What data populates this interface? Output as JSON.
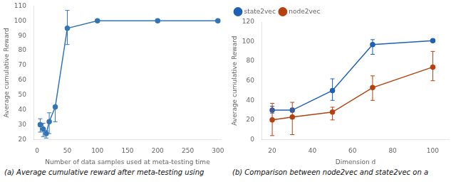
{
  "chart_data": [
    {
      "type": "line",
      "x": [
        5,
        10,
        15,
        20,
        30,
        50,
        100,
        200,
        300
      ],
      "values": [
        30,
        27,
        24,
        32,
        42,
        95,
        100,
        100,
        100
      ],
      "yerr_low": [
        5,
        5,
        3,
        8,
        10,
        11,
        1,
        1,
        1
      ],
      "yerr_high": [
        4,
        4,
        2,
        6,
        0,
        12,
        1,
        1,
        1
      ],
      "color": "#3375b5",
      "marker": "circle",
      "xlabel": "Number of data samples used at meta-testing time",
      "ylabel": "Average cumulative Reward",
      "xlim": [
        -5,
        305
      ],
      "ylim": [
        20,
        110
      ],
      "xticks": [
        0,
        50,
        100,
        150,
        200,
        250,
        300
      ],
      "yticks": [
        20,
        30,
        40,
        50,
        60,
        70,
        80,
        90,
        100,
        110
      ],
      "grid": false,
      "caption": "(a) Average cumulative reward after meta-testing using"
    },
    {
      "type": "line",
      "x": [
        20,
        30,
        50,
        70,
        100
      ],
      "series": [
        {
          "name": "state2vec",
          "color": "#2060b5",
          "values": [
            30,
            30,
            50,
            97,
            101
          ],
          "yerr_low": [
            3,
            2,
            10,
            10,
            1
          ],
          "yerr_high": [
            4,
            2,
            12,
            5,
            1
          ]
        },
        {
          "name": "node2vec",
          "color": "#b84010",
          "values": [
            20,
            23,
            28,
            53,
            74
          ],
          "yerr_low": [
            16,
            18,
            8,
            13,
            14
          ],
          "yerr_high": [
            17,
            15,
            5,
            12,
            16
          ]
        }
      ],
      "marker": "circle",
      "xlabel": "Dimension d",
      "ylabel": "Average cumulative Reward",
      "xlim": [
        15,
        108
      ],
      "ylim": [
        0,
        120
      ],
      "xticks": [
        20,
        40,
        60,
        80,
        100
      ],
      "yticks": [
        0,
        20,
        40,
        60,
        80,
        100,
        120
      ],
      "grid": false,
      "legend": "upper left",
      "caption": "(b) Comparison between node2vec and state2vec on a"
    }
  ]
}
